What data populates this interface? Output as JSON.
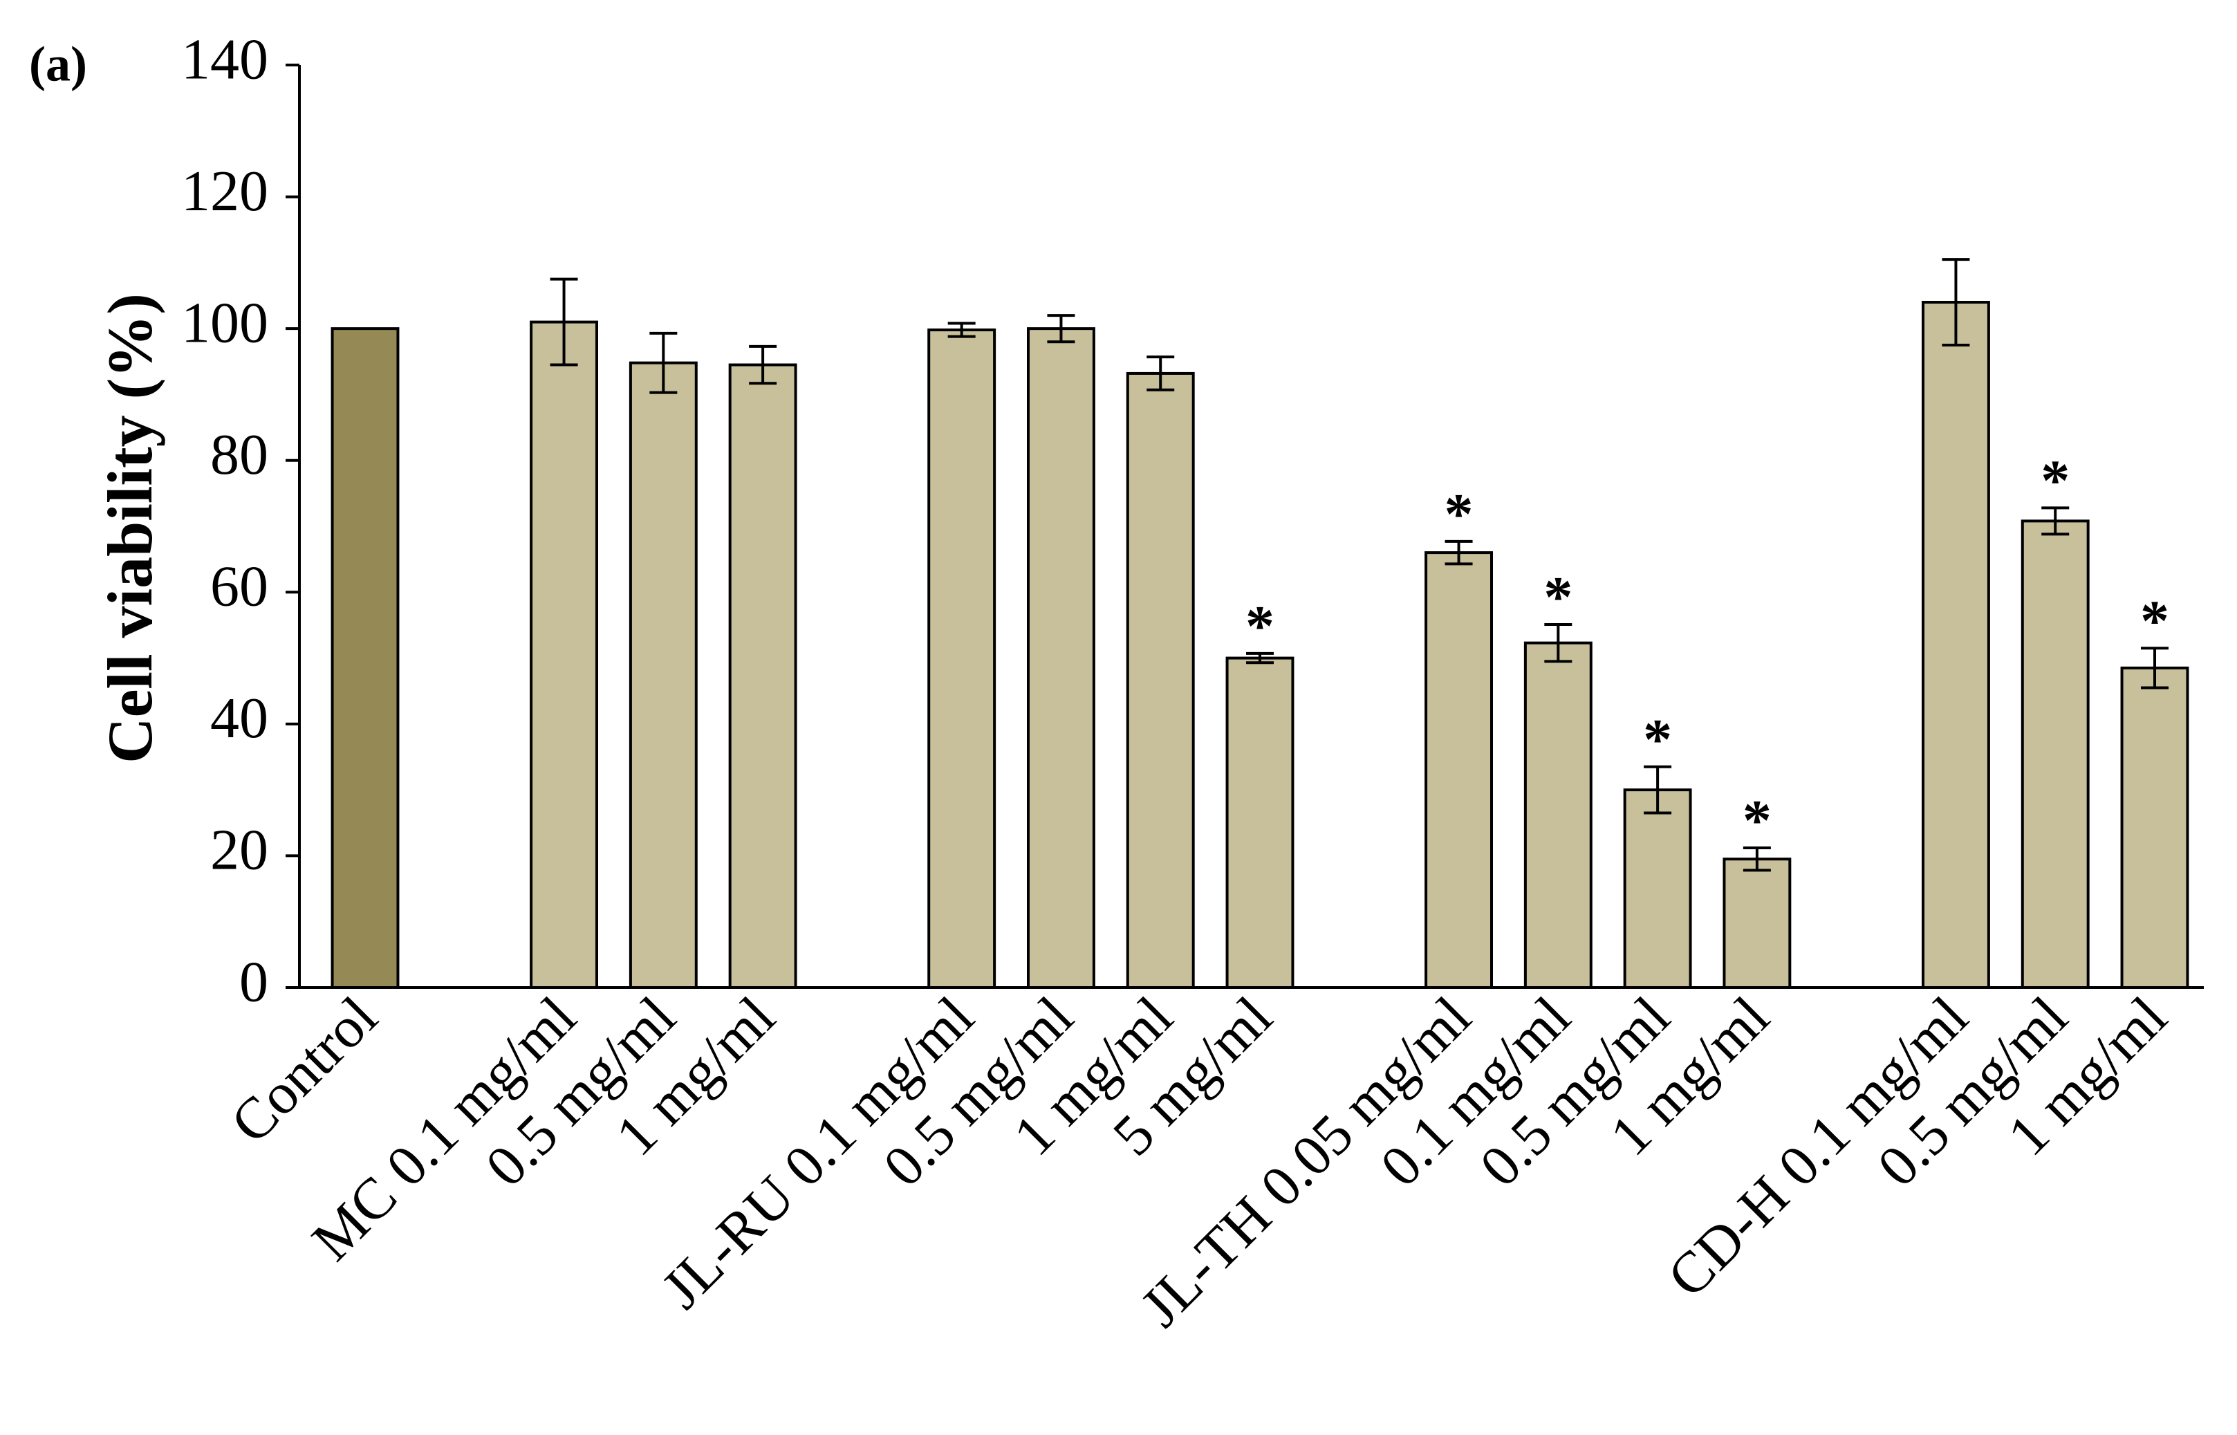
{
  "chart_data": {
    "type": "bar",
    "panel_label": "(a)",
    "y_label": "Cell viability (%)",
    "categories": [
      "Control",
      null,
      "MC 0.1 mg/ml",
      "0.5 mg/ml",
      "1 mg/ml",
      null,
      "JL-RU 0.1 mg/ml",
      "0.5 mg/ml",
      "1 mg/ml",
      "5 mg/ml",
      null,
      "JL-TH 0.05 mg/ml",
      "0.1 mg/ml",
      "0.5 mg/ml",
      "1 mg/ml",
      null,
      "CD-H 0.1 mg/ml",
      "0.5 mg/ml",
      "1 mg/ml"
    ],
    "values": [
      100,
      null,
      101,
      94.8,
      94.5,
      null,
      99.8,
      100,
      93.2,
      50,
      null,
      66,
      52.3,
      30,
      19.5,
      null,
      104,
      70.8,
      48.5
    ],
    "errors": [
      null,
      null,
      6.5,
      4.5,
      2.8,
      null,
      1,
      2,
      2.5,
      0.7,
      null,
      1.7,
      2.8,
      3.5,
      1.7,
      null,
      6.5,
      2,
      3
    ],
    "annotations": [
      null,
      null,
      null,
      null,
      null,
      null,
      null,
      null,
      null,
      "*",
      null,
      "*",
      "*",
      "*",
      "*",
      null,
      null,
      "*",
      "*"
    ],
    "colors": [
      "#958a55",
      null,
      "#c8c09a",
      "#c8c09a",
      "#c8c09a",
      null,
      "#c8c09a",
      "#c8c09a",
      "#c8c09a",
      "#c8c09a",
      null,
      "#c8c09a",
      "#c8c09a",
      "#c8c09a",
      "#c8c09a",
      null,
      "#c8c09a",
      "#c8c09a",
      "#c8c09a"
    ],
    "ylim": [
      0,
      140
    ],
    "yticks": [
      0,
      20,
      40,
      60,
      80,
      100,
      120,
      140
    ],
    "grid": false
  }
}
